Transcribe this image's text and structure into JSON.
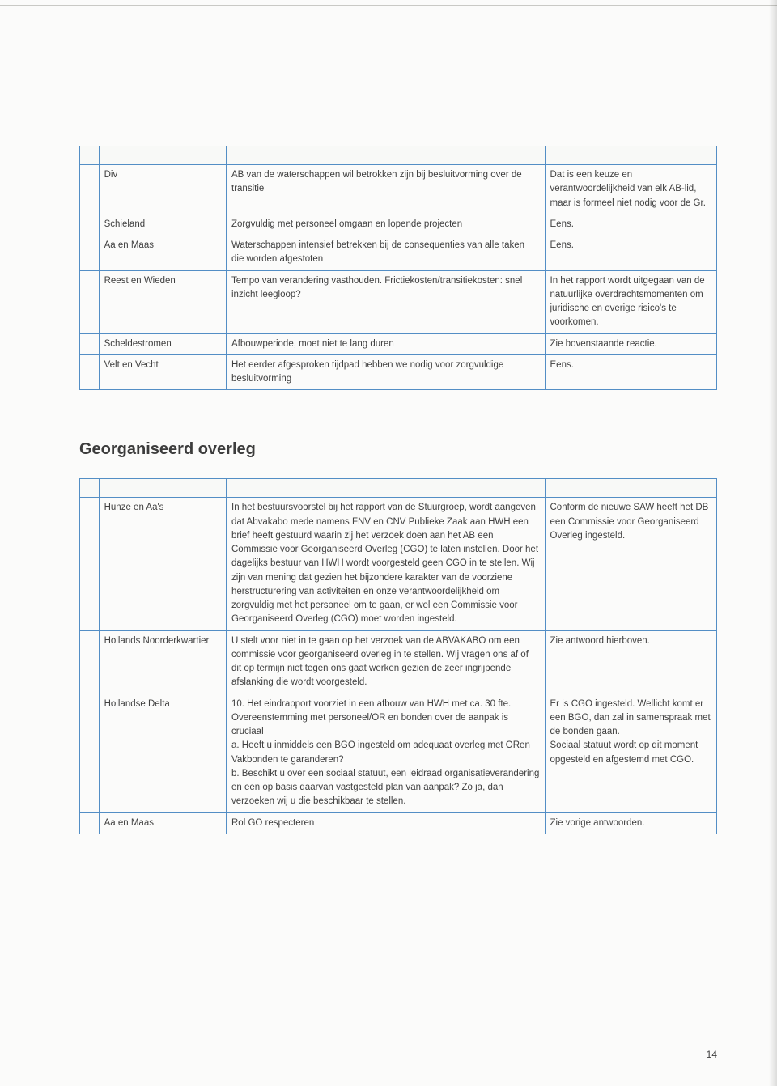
{
  "style": {
    "border_color": "#538ec5",
    "background_color": "#fbfbfa",
    "text_color": "#404040",
    "heading_color": "#3c3c3c",
    "font_family": "Verdana",
    "body_fontsize_pt": 9,
    "heading_fontsize_pt": 15,
    "col_widths_pct": [
      3,
      20,
      50,
      27
    ]
  },
  "table1": {
    "rows": [
      {
        "c1": "Div",
        "c2": "AB van de waterschappen wil betrokken zijn bij besluitvorming over de transitie",
        "c3": "Dat is een keuze en verantwoordelijkheid van elk AB-lid, maar is formeel niet nodig voor de Gr."
      },
      {
        "c1": "Schieland",
        "c2": "Zorgvuldig met personeel omgaan en lopende projecten",
        "c3": "Eens."
      },
      {
        "c1": "Aa en Maas",
        "c2": "Waterschappen intensief betrekken bij de consequenties van alle taken die worden afgestoten",
        "c3": "Eens."
      },
      {
        "c1": "Reest en Wieden",
        "c2": "Tempo van verandering vasthouden. Frictiekosten/transitiekosten: snel inzicht leegloop?",
        "c3": "In het rapport wordt uitgegaan van de natuurlijke overdrachtsmomenten om juridische en overige risico's te voorkomen."
      },
      {
        "c1": "Scheldestromen",
        "c2": "Afbouwperiode, moet niet te lang duren",
        "c3": "Zie bovenstaande reactie."
      },
      {
        "c1": "Velt en Vecht",
        "c2": "Het eerder afgesproken tijdpad hebben we nodig voor zorgvuldige besluitvorming",
        "c3": "Eens."
      }
    ]
  },
  "heading": "Georganiseerd overleg",
  "table2": {
    "rows": [
      {
        "c1": "Hunze en Aa's",
        "c2": "In het bestuursvoorstel bij het rapport van de Stuurgroep, wordt aangeven dat Abvakabo mede namens FNV en CNV Publieke Zaak aan HWH een brief heeft gestuurd waarin zij het verzoek doen aan het AB een Commissie voor Georganiseerd Overleg (CGO) te laten instellen. Door het dagelijks bestuur van HWH wordt voorgesteld geen CGO in te stellen. Wij zijn van mening dat gezien het bijzondere karakter van de voorziene herstructurering van activiteiten en onze verantwoordelijkheid om zorgvuldig met het personeel om te gaan, er wel een Commissie voor Georganiseerd Overleg (CGO) moet worden ingesteld.",
        "c3": "Conform de nieuwe SAW heeft het DB een Commissie voor Georganiseerd Overleg ingesteld."
      },
      {
        "c1": "Hollands Noorderkwartier",
        "c2": "U stelt voor niet in te gaan op het verzoek van de ABVAKABO om een commissie voor georganiseerd overleg in te stellen. Wij vragen ons af of dit op termijn niet tegen ons gaat werken gezien de zeer ingrijpende afslanking die wordt voorgesteld.",
        "c3": "Zie antwoord hierboven."
      },
      {
        "c1": "Hollandse Delta",
        "c2": "10. Het eindrapport voorziet in een afbouw van HWH met ca. 30 fte. Overeenstemming met personeel/OR en bonden over de aanpak is cruciaal\na. Heeft u inmiddels een BGO ingesteld om adequaat overleg met ORen Vakbonden te garanderen?\nb. Beschikt u over een sociaal statuut, een leidraad organisatieverandering en een op basis daarvan vastgesteld plan van aanpak? Zo ja, dan verzoeken wij u die beschikbaar te stellen.",
        "c3": "Er is CGO ingesteld. Wellicht komt er een BGO, dan zal in samenspraak met de bonden gaan.\nSociaal statuut wordt op dit moment opgesteld en afgestemd met CGO."
      },
      {
        "c1": "Aa en Maas",
        "c2": "Rol GO respecteren",
        "c3": "Zie vorige antwoorden."
      }
    ]
  },
  "page_number": "14"
}
